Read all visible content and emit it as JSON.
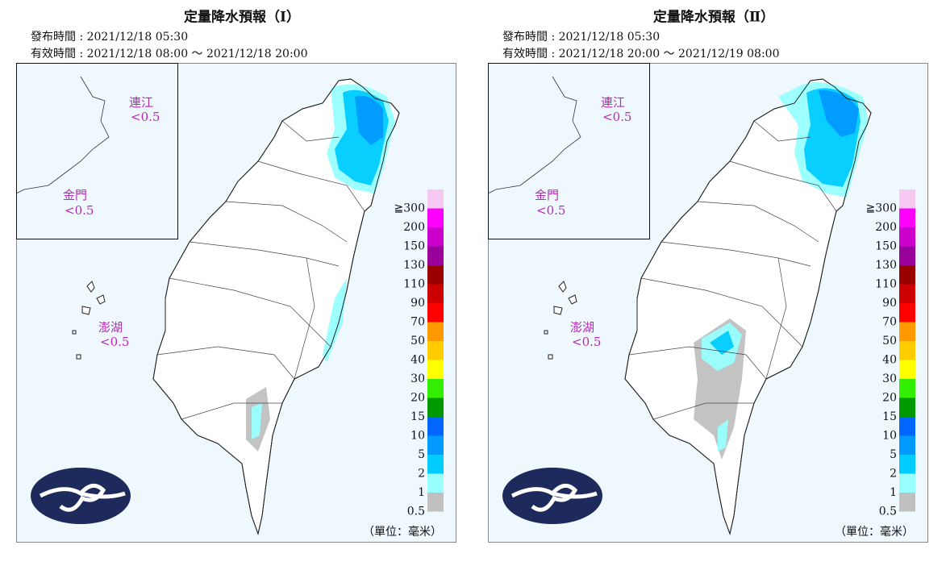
{
  "panels": [
    {
      "title": "定量降水預報（Ⅰ）",
      "issued": "發布時間 : 2021/12/18 05:30",
      "valid": "有效時間 : 2021/12/18 08:00 ～ 2021/12/18 20:00",
      "matsu": "連江",
      "matsu_value": "<0.5",
      "kinmen": "金門",
      "kinmen_value": "<0.5",
      "penghu": "澎湖",
      "penghu_value": "<0.5"
    },
    {
      "title": "定量降水預報（Ⅱ）",
      "issued": "發布時間 : 2021/12/18 05:30",
      "valid": "有效時間 : 2021/12/18 20:00 ～ 2021/12/19 08:00",
      "matsu": "連江",
      "matsu_value": "<0.5",
      "kinmen": "金門",
      "kinmen_value": "<0.5",
      "penghu": "澎湖",
      "penghu_value": "<0.5"
    }
  ],
  "legend": {
    "unit": "（單位：毫米）",
    "items": [
      {
        "label": "≧300",
        "color": "#f7c8f2"
      },
      {
        "label": "200",
        "color": "#ff00ff"
      },
      {
        "label": "150",
        "color": "#cc00cc"
      },
      {
        "label": "130",
        "color": "#990099"
      },
      {
        "label": "110",
        "color": "#990000"
      },
      {
        "label": "90",
        "color": "#cc0000"
      },
      {
        "label": "70",
        "color": "#ff0000"
      },
      {
        "label": "50",
        "color": "#ff9900"
      },
      {
        "label": "40",
        "color": "#ffcc00"
      },
      {
        "label": "30",
        "color": "#ffff00"
      },
      {
        "label": "20",
        "color": "#33ee00"
      },
      {
        "label": "15",
        "color": "#009900"
      },
      {
        "label": "10",
        "color": "#0066ff"
      },
      {
        "label": "5",
        "color": "#0099ff"
      },
      {
        "label": "2",
        "color": "#00ccff"
      },
      {
        "label": "1",
        "color": "#99ffff"
      },
      {
        "label": "0.5",
        "color": "#c0c0c0"
      }
    ]
  }
}
